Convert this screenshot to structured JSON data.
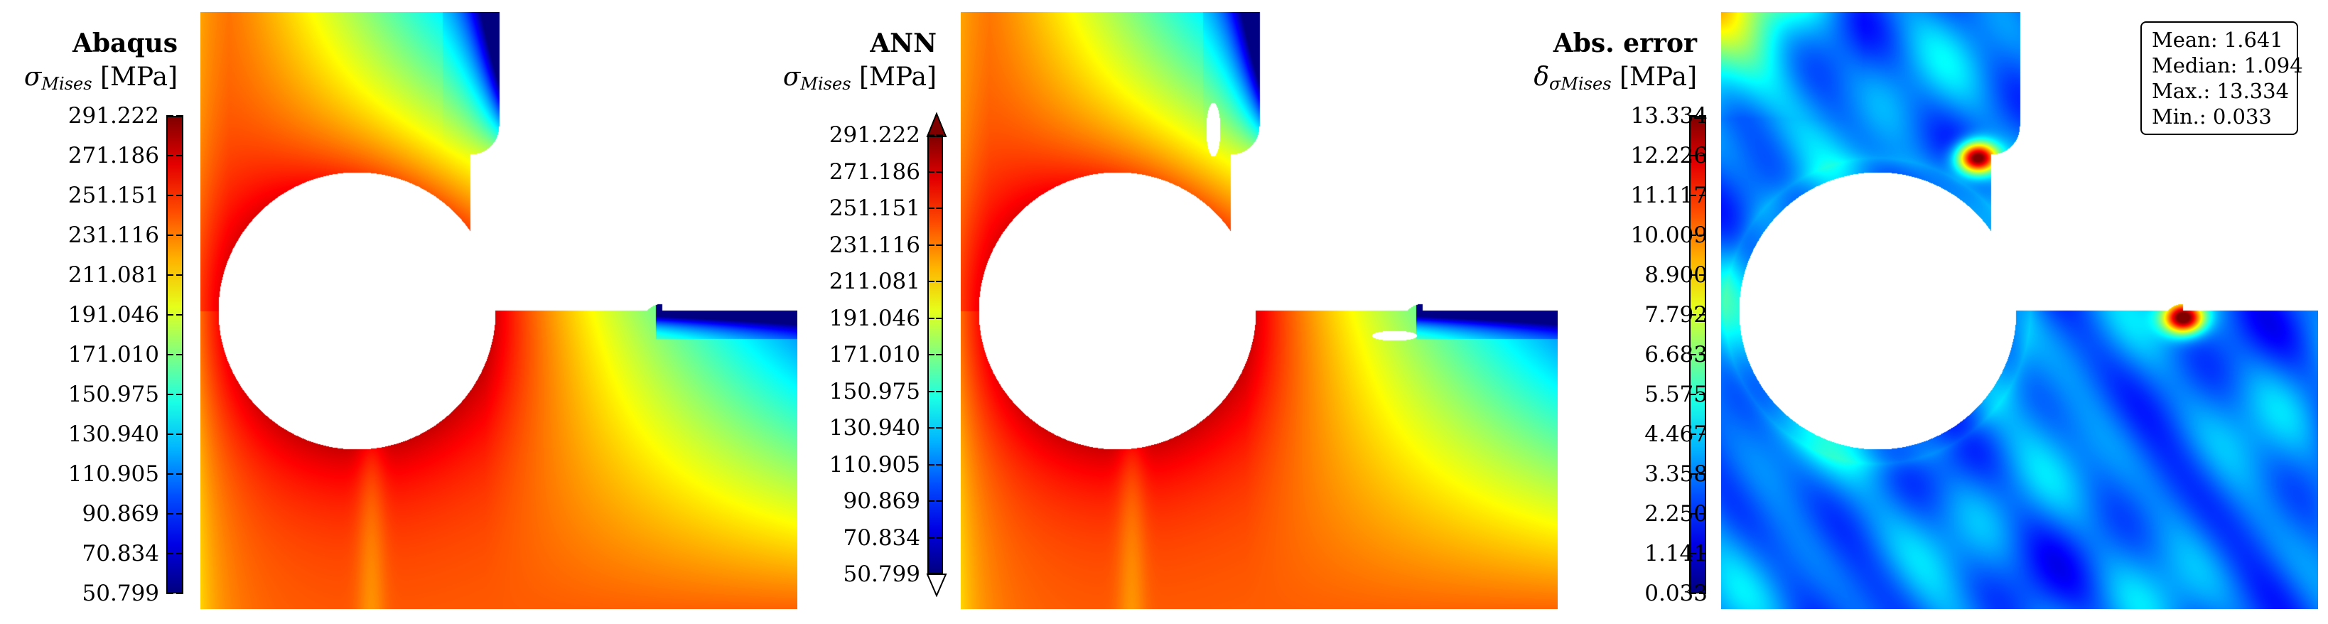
{
  "chart_data": [
    {
      "type": "heatmap",
      "title": "Abaqus",
      "quantity_symbol": "σ",
      "quantity_subscript": "Mises",
      "unit": "[MPa]",
      "colormap": "jet",
      "colorbar_ticks": [
        "291.222",
        "271.186",
        "251.151",
        "231.116",
        "211.081",
        "191.046",
        "171.010",
        "150.975",
        "130.940",
        "110.905",
        "90.869",
        "70.834",
        "50.799"
      ],
      "vmin": 50.799,
      "vmax": 291.222
    },
    {
      "type": "heatmap",
      "title": "ANN",
      "quantity_symbol": "σ",
      "quantity_subscript": "Mises",
      "unit": "[MPa]",
      "colormap": "jet",
      "colorbar_extend": "both",
      "colorbar_ticks": [
        "291.222",
        "271.186",
        "251.151",
        "231.116",
        "211.081",
        "191.046",
        "171.010",
        "150.975",
        "130.940",
        "110.905",
        "90.869",
        "70.834",
        "50.799"
      ],
      "vmin": 50.799,
      "vmax": 291.222
    },
    {
      "type": "heatmap",
      "title": "Abs. error",
      "quantity_symbol": "δ",
      "quantity_subscript": "σMises",
      "unit": "[MPa]",
      "colormap": "jet",
      "colorbar_ticks": [
        "13.334",
        "12.226",
        "11.117",
        "10.009",
        "8.900",
        "7.792",
        "6.683",
        "5.575",
        "4.467",
        "3.358",
        "2.250",
        "1.141",
        "0.033"
      ],
      "vmin": 0.033,
      "vmax": 13.334,
      "stats": {
        "mean": "Mean: 1.641",
        "median": "Median: 1.094",
        "max": "Max.: 13.334",
        "min": "Min.: 0.033"
      }
    }
  ]
}
